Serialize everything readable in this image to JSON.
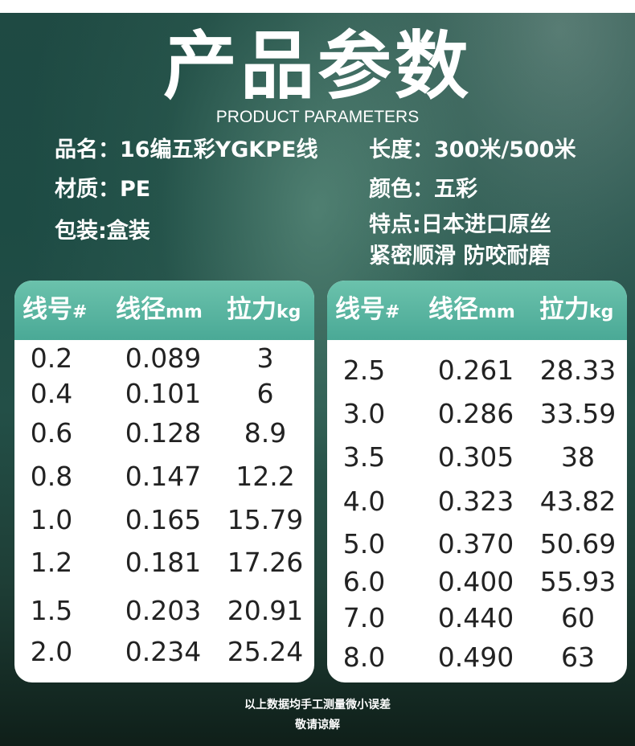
{
  "title_cn": "产品参数",
  "title_en": "PRODUCT PARAMETERS",
  "info": {
    "name": "品名：16编五彩YGKPE线",
    "length": "长度：300米/500米",
    "material": "材质：PE",
    "color": "颜色：五彩",
    "packaging": "包装:盒装",
    "feature_1": "特点:日本进口原丝",
    "feature_2": "紧密顺滑 防咬耐磨"
  },
  "table_header": {
    "col1": "线号",
    "col1_unit": "#",
    "col2": "线径",
    "col2_unit": "mm",
    "col3": "拉力",
    "col3_unit": "kg"
  },
  "left_rows": [
    [
      "0.2",
      "0.089",
      "3"
    ],
    [
      "0.4",
      "0.101",
      "6"
    ],
    [
      "0.6",
      "0.128",
      "8.9"
    ],
    [
      "0.8",
      "0.147",
      "12.2"
    ],
    [
      "1.0",
      "0.165",
      "15.79"
    ],
    [
      "1.2",
      "0.181",
      "17.26"
    ],
    [
      "1.5",
      "0.203",
      "20.91"
    ],
    [
      "2.0",
      "0.234",
      "25.24"
    ]
  ],
  "right_rows": [
    [
      "2.5",
      "0.261",
      "28.33"
    ],
    [
      "3.0",
      "0.286",
      "33.59"
    ],
    [
      "3.5",
      "0.305",
      "38"
    ],
    [
      "4.0",
      "0.323",
      "43.82"
    ],
    [
      "5.0",
      "0.370",
      "50.69"
    ],
    [
      "6.0",
      "0.400",
      "55.93"
    ],
    [
      "7.0",
      "0.440",
      "60"
    ],
    [
      "8.0",
      "0.490",
      "63"
    ]
  ],
  "footnote_1": "以上数据均手工测量微小误差",
  "footnote_2": "敬请谅解"
}
